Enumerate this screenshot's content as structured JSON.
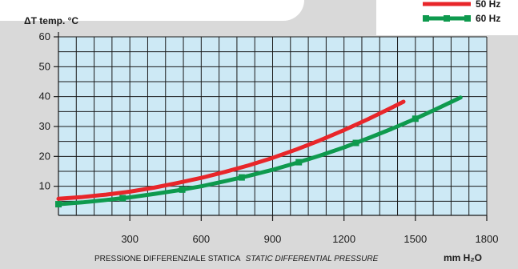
{
  "chart_data": {
    "type": "line",
    "title": "",
    "ylabel": "ΔT  temp. °C",
    "xlabel": "PRESSIONE DIFFERENZIALE STATICA",
    "xlabel_italic": "STATIC DIFFERENTIAL PRESSURE",
    "xunit": "mm H₂O",
    "xlim": [
      0,
      1800
    ],
    "ylim": [
      0,
      60
    ],
    "xticks": [
      300,
      600,
      900,
      1200,
      1500,
      1800
    ],
    "yticks": [
      10,
      20,
      30,
      40,
      50,
      60
    ],
    "grid": true,
    "legend_position": "top-right",
    "series": [
      {
        "name": "50 Hz",
        "color": "#e8262a",
        "marker": "none",
        "x": [
          0,
          100,
          200,
          300,
          400,
          500,
          600,
          700,
          800,
          900,
          1000,
          1100,
          1200,
          1300,
          1400,
          1450
        ],
        "y": [
          5.8,
          6.4,
          7.2,
          8.2,
          9.5,
          11.1,
          12.8,
          14.8,
          17.0,
          19.5,
          22.3,
          25.4,
          28.8,
          32.4,
          36.3,
          38.3
        ]
      },
      {
        "name": "60 Hz",
        "color": "#0e9a4e",
        "marker": "square",
        "x": [
          0,
          100,
          200,
          300,
          400,
          500,
          600,
          700,
          800,
          900,
          1000,
          1100,
          1200,
          1300,
          1400,
          1500,
          1600,
          1690
        ],
        "y": [
          4.0,
          4.6,
          5.4,
          6.3,
          7.4,
          8.6,
          10.0,
          11.7,
          13.5,
          15.5,
          17.8,
          20.3,
          23.0,
          26.0,
          29.2,
          32.6,
          36.3,
          39.7
        ],
        "markers_x": [
          0,
          270,
          520,
          770,
          1010,
          1250,
          1500
        ]
      }
    ]
  }
}
